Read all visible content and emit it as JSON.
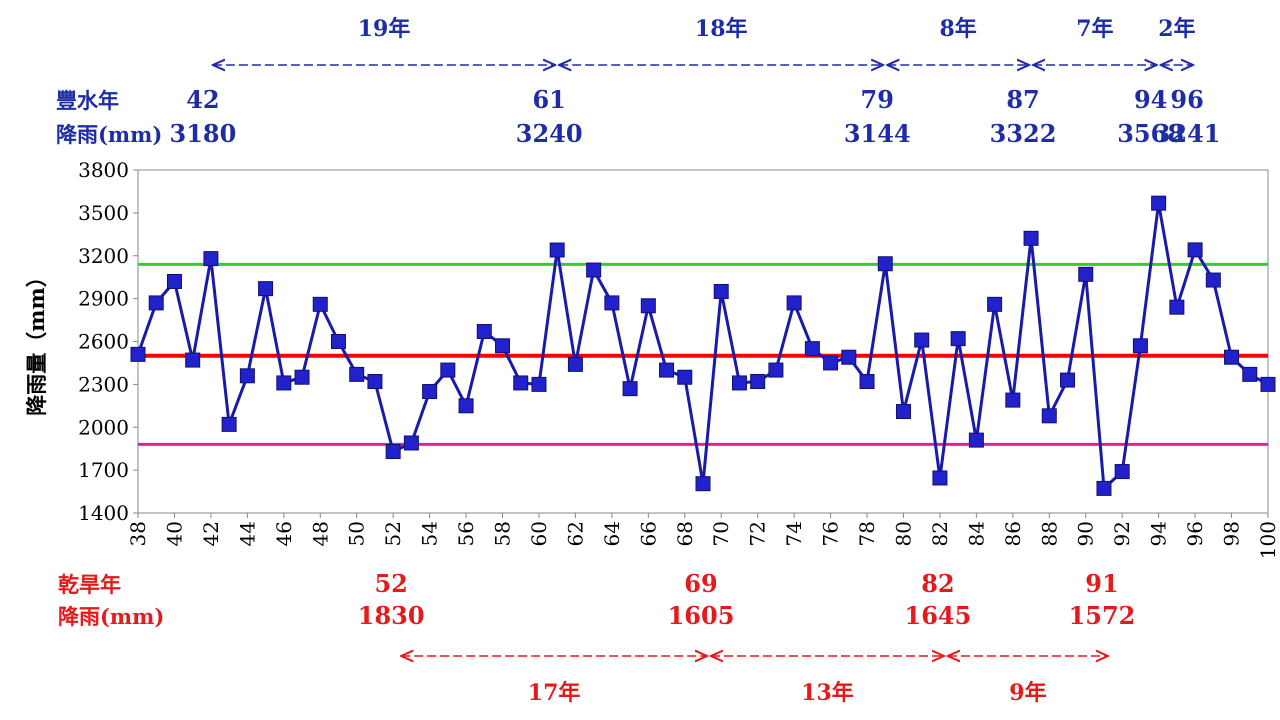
{
  "chart_data": {
    "type": "line",
    "ylabel": "降雨量（mm）",
    "ylim": [
      1400,
      3800
    ],
    "yticks": [
      1400,
      1700,
      2000,
      2300,
      2600,
      2900,
      3200,
      3500,
      3800
    ],
    "xlim": [
      38,
      100
    ],
    "xticks": [
      38,
      40,
      42,
      44,
      46,
      48,
      50,
      52,
      54,
      56,
      58,
      60,
      62,
      64,
      66,
      68,
      70,
      72,
      74,
      76,
      78,
      80,
      82,
      84,
      86,
      88,
      90,
      92,
      94,
      96,
      98,
      100
    ],
    "grid": false,
    "series": [
      {
        "color": "#1a1aaa",
        "marker": "square",
        "x": [
          38,
          39,
          40,
          41,
          42,
          43,
          44,
          45,
          46,
          47,
          48,
          49,
          50,
          51,
          52,
          53,
          54,
          55,
          56,
          57,
          58,
          59,
          60,
          61,
          62,
          63,
          64,
          65,
          66,
          67,
          68,
          69,
          70,
          71,
          72,
          73,
          74,
          75,
          76,
          77,
          78,
          79,
          80,
          81,
          82,
          83,
          84,
          85,
          86,
          87,
          88,
          89,
          90,
          91,
          92,
          93,
          94,
          95,
          96,
          97,
          98,
          99,
          100
        ],
        "values": [
          2510,
          2870,
          3020,
          2470,
          3180,
          2020,
          2360,
          2970,
          2310,
          2350,
          2860,
          2600,
          2370,
          2320,
          1830,
          1890,
          2250,
          2400,
          2150,
          2670,
          2570,
          2310,
          2300,
          3240,
          2440,
          3100,
          2870,
          2270,
          2850,
          2400,
          2350,
          1605,
          2950,
          2310,
          2320,
          2400,
          2870,
          2550,
          2450,
          2490,
          2320,
          3144,
          2110,
          2610,
          1645,
          2620,
          1910,
          2860,
          2190,
          3322,
          2080,
          2330,
          3070,
          1572,
          1690,
          2570,
          3568,
          2840,
          3241,
          3030,
          2490,
          2370,
          2300
        ]
      }
    ],
    "reference_lines": [
      {
        "value": 3140,
        "color": "#33cc33"
      },
      {
        "value": 2500,
        "color": "#ff0000"
      },
      {
        "value": 1880,
        "color": "#e020a0"
      }
    ],
    "wet_years": {
      "label_year": "豐水年",
      "label_rain": "降雨(mm)",
      "color": "#1f2ca8",
      "points": [
        {
          "year": "42",
          "rain": "3180",
          "x": 42
        },
        {
          "year": "61",
          "rain": "3240",
          "x": 61
        },
        {
          "year": "79",
          "rain": "3144",
          "x": 79
        },
        {
          "year": "87",
          "rain": "3322",
          "x": 87
        },
        {
          "year": "94",
          "rain": "3568",
          "x": 94
        },
        {
          "year": "96",
          "rain": "3241",
          "x": 96
        }
      ],
      "intervals": [
        {
          "from": 42,
          "to": 61,
          "label": "19年"
        },
        {
          "from": 61,
          "to": 79,
          "label": "18年"
        },
        {
          "from": 79,
          "to": 87,
          "label": "8年"
        },
        {
          "from": 87,
          "to": 94,
          "label": "7年"
        },
        {
          "from": 94,
          "to": 96,
          "label": "2年"
        }
      ]
    },
    "dry_years": {
      "label_year": "乾旱年",
      "label_rain": "降雨(mm)",
      "color": "#e41a1c",
      "points": [
        {
          "year": "52",
          "rain": "1830",
          "x": 52
        },
        {
          "year": "69",
          "rain": "1605",
          "x": 69
        },
        {
          "year": "82",
          "rain": "1645",
          "x": 82
        },
        {
          "year": "91",
          "rain": "1572",
          "x": 91
        }
      ],
      "intervals": [
        {
          "from": 52,
          "to": 69,
          "label": "17年"
        },
        {
          "from": 69,
          "to": 82,
          "label": "13年"
        },
        {
          "from": 82,
          "to": 91,
          "label": "9年"
        }
      ]
    }
  }
}
